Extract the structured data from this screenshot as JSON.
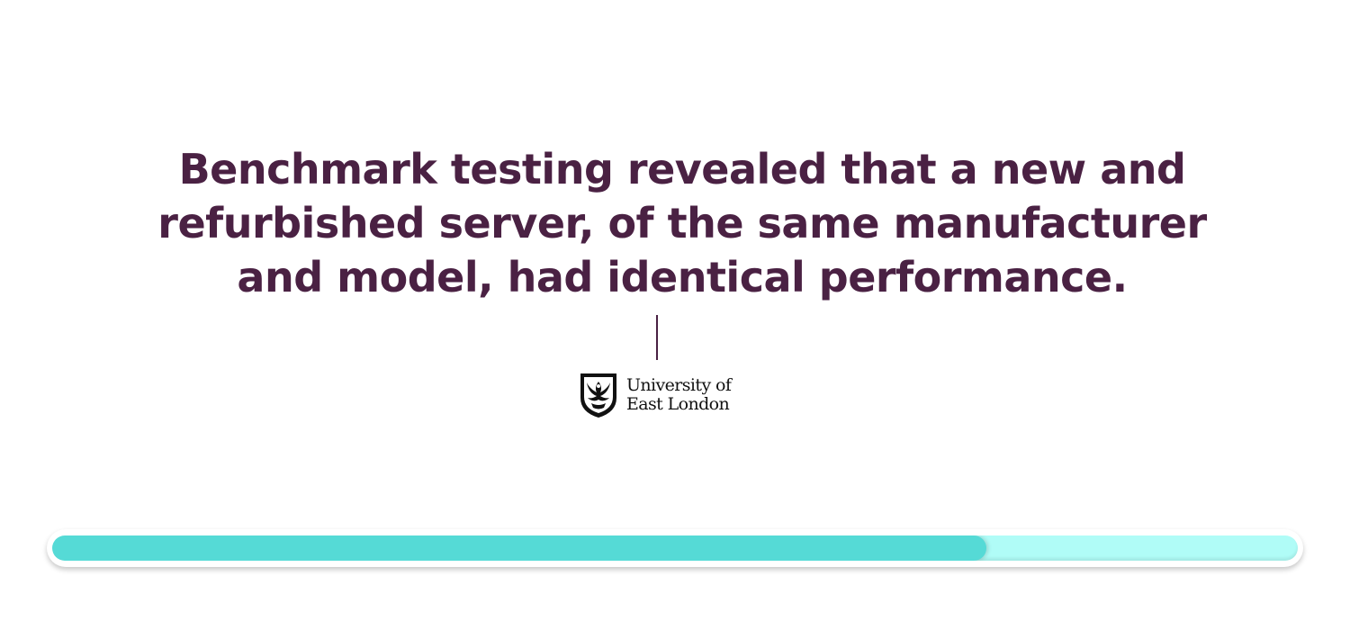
{
  "slide": {
    "quote_lines": [
      "Benchmark testing revealed that a new and",
      "refurbished server, of the same manufacturer",
      "and model, had identical performance."
    ]
  },
  "logo": {
    "line1": "University of",
    "line2": "East London",
    "icon": "university-crest-icon"
  },
  "progress": {
    "fraction": 0.75,
    "fill_color": "#55dad6",
    "track_color": "#b0fcf7"
  },
  "colors": {
    "text": "#4a2143",
    "divider": "#4a2143"
  }
}
